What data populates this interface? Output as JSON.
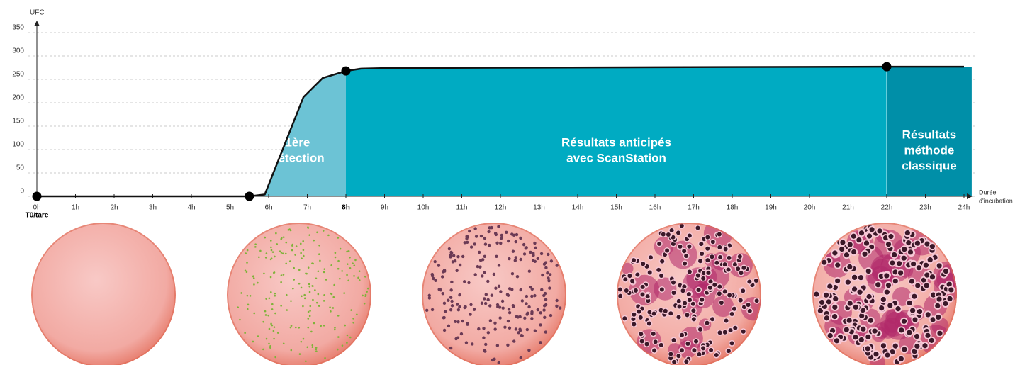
{
  "chart_data": {
    "type": "line",
    "y_label": "UFC",
    "x_label": [
      "Durée",
      "d'incubation"
    ],
    "xlim": [
      0,
      24.2
    ],
    "ylim": [
      0,
      375
    ],
    "yticks": [
      0,
      50,
      100,
      150,
      200,
      250,
      300,
      350
    ],
    "xticks": [
      {
        "value": 0,
        "label": "0h"
      },
      {
        "value": 1,
        "label": "1h"
      },
      {
        "value": 2,
        "label": "2h"
      },
      {
        "value": 3,
        "label": "3h"
      },
      {
        "value": 4,
        "label": "4h"
      },
      {
        "value": 5,
        "label": "5h"
      },
      {
        "value": 6,
        "label": "6h"
      },
      {
        "value": 7,
        "label": "7h"
      },
      {
        "value": 8,
        "label": "8h"
      },
      {
        "value": 9,
        "label": "9h"
      },
      {
        "value": 10,
        "label": "10h"
      },
      {
        "value": 11,
        "label": "11h"
      },
      {
        "value": 12,
        "label": "12h"
      },
      {
        "value": 13,
        "label": "13h"
      },
      {
        "value": 14,
        "label": "14h"
      },
      {
        "value": 15,
        "label": "15h"
      },
      {
        "value": 16,
        "label": "16h"
      },
      {
        "value": 17,
        "label": "17h"
      },
      {
        "value": 18,
        "label": "18h"
      },
      {
        "value": 19,
        "label": "19h"
      },
      {
        "value": 20,
        "label": "20h"
      },
      {
        "value": 21,
        "label": "21h"
      },
      {
        "value": 22,
        "label": "22h"
      },
      {
        "value": 23,
        "label": "23h"
      },
      {
        "value": 24,
        "label": "24h"
      }
    ],
    "highlight_xtick": 8,
    "origin_label": "T0/tare",
    "grid": true,
    "x": [
      0,
      5.5,
      5.9,
      6.9,
      7.4,
      8,
      8.4,
      9,
      12,
      16,
      22,
      24
    ],
    "series": [
      {
        "color": "#111111",
        "values": [
          0,
          0,
          4,
          212,
          253,
          268,
          273,
          274,
          275,
          276,
          277,
          277
        ]
      }
    ],
    "markers": {
      "x": [
        0,
        5.5,
        8,
        22
      ],
      "values": [
        0,
        0,
        268,
        277
      ],
      "color": "#000000"
    },
    "zones": [
      {
        "from": 5.5,
        "to": 8,
        "color": "#6cc3d5",
        "label": [
          "1ère",
          "détection"
        ]
      },
      {
        "from": 8,
        "to": 22,
        "color": "#00abc2",
        "label": [
          "Résultats anticipés",
          "avec ScanStation"
        ]
      },
      {
        "from": 22,
        "to": 24.2,
        "color": "#008fa8",
        "label": [
          "Résultats",
          "méthode",
          "classique"
        ]
      }
    ]
  }
}
